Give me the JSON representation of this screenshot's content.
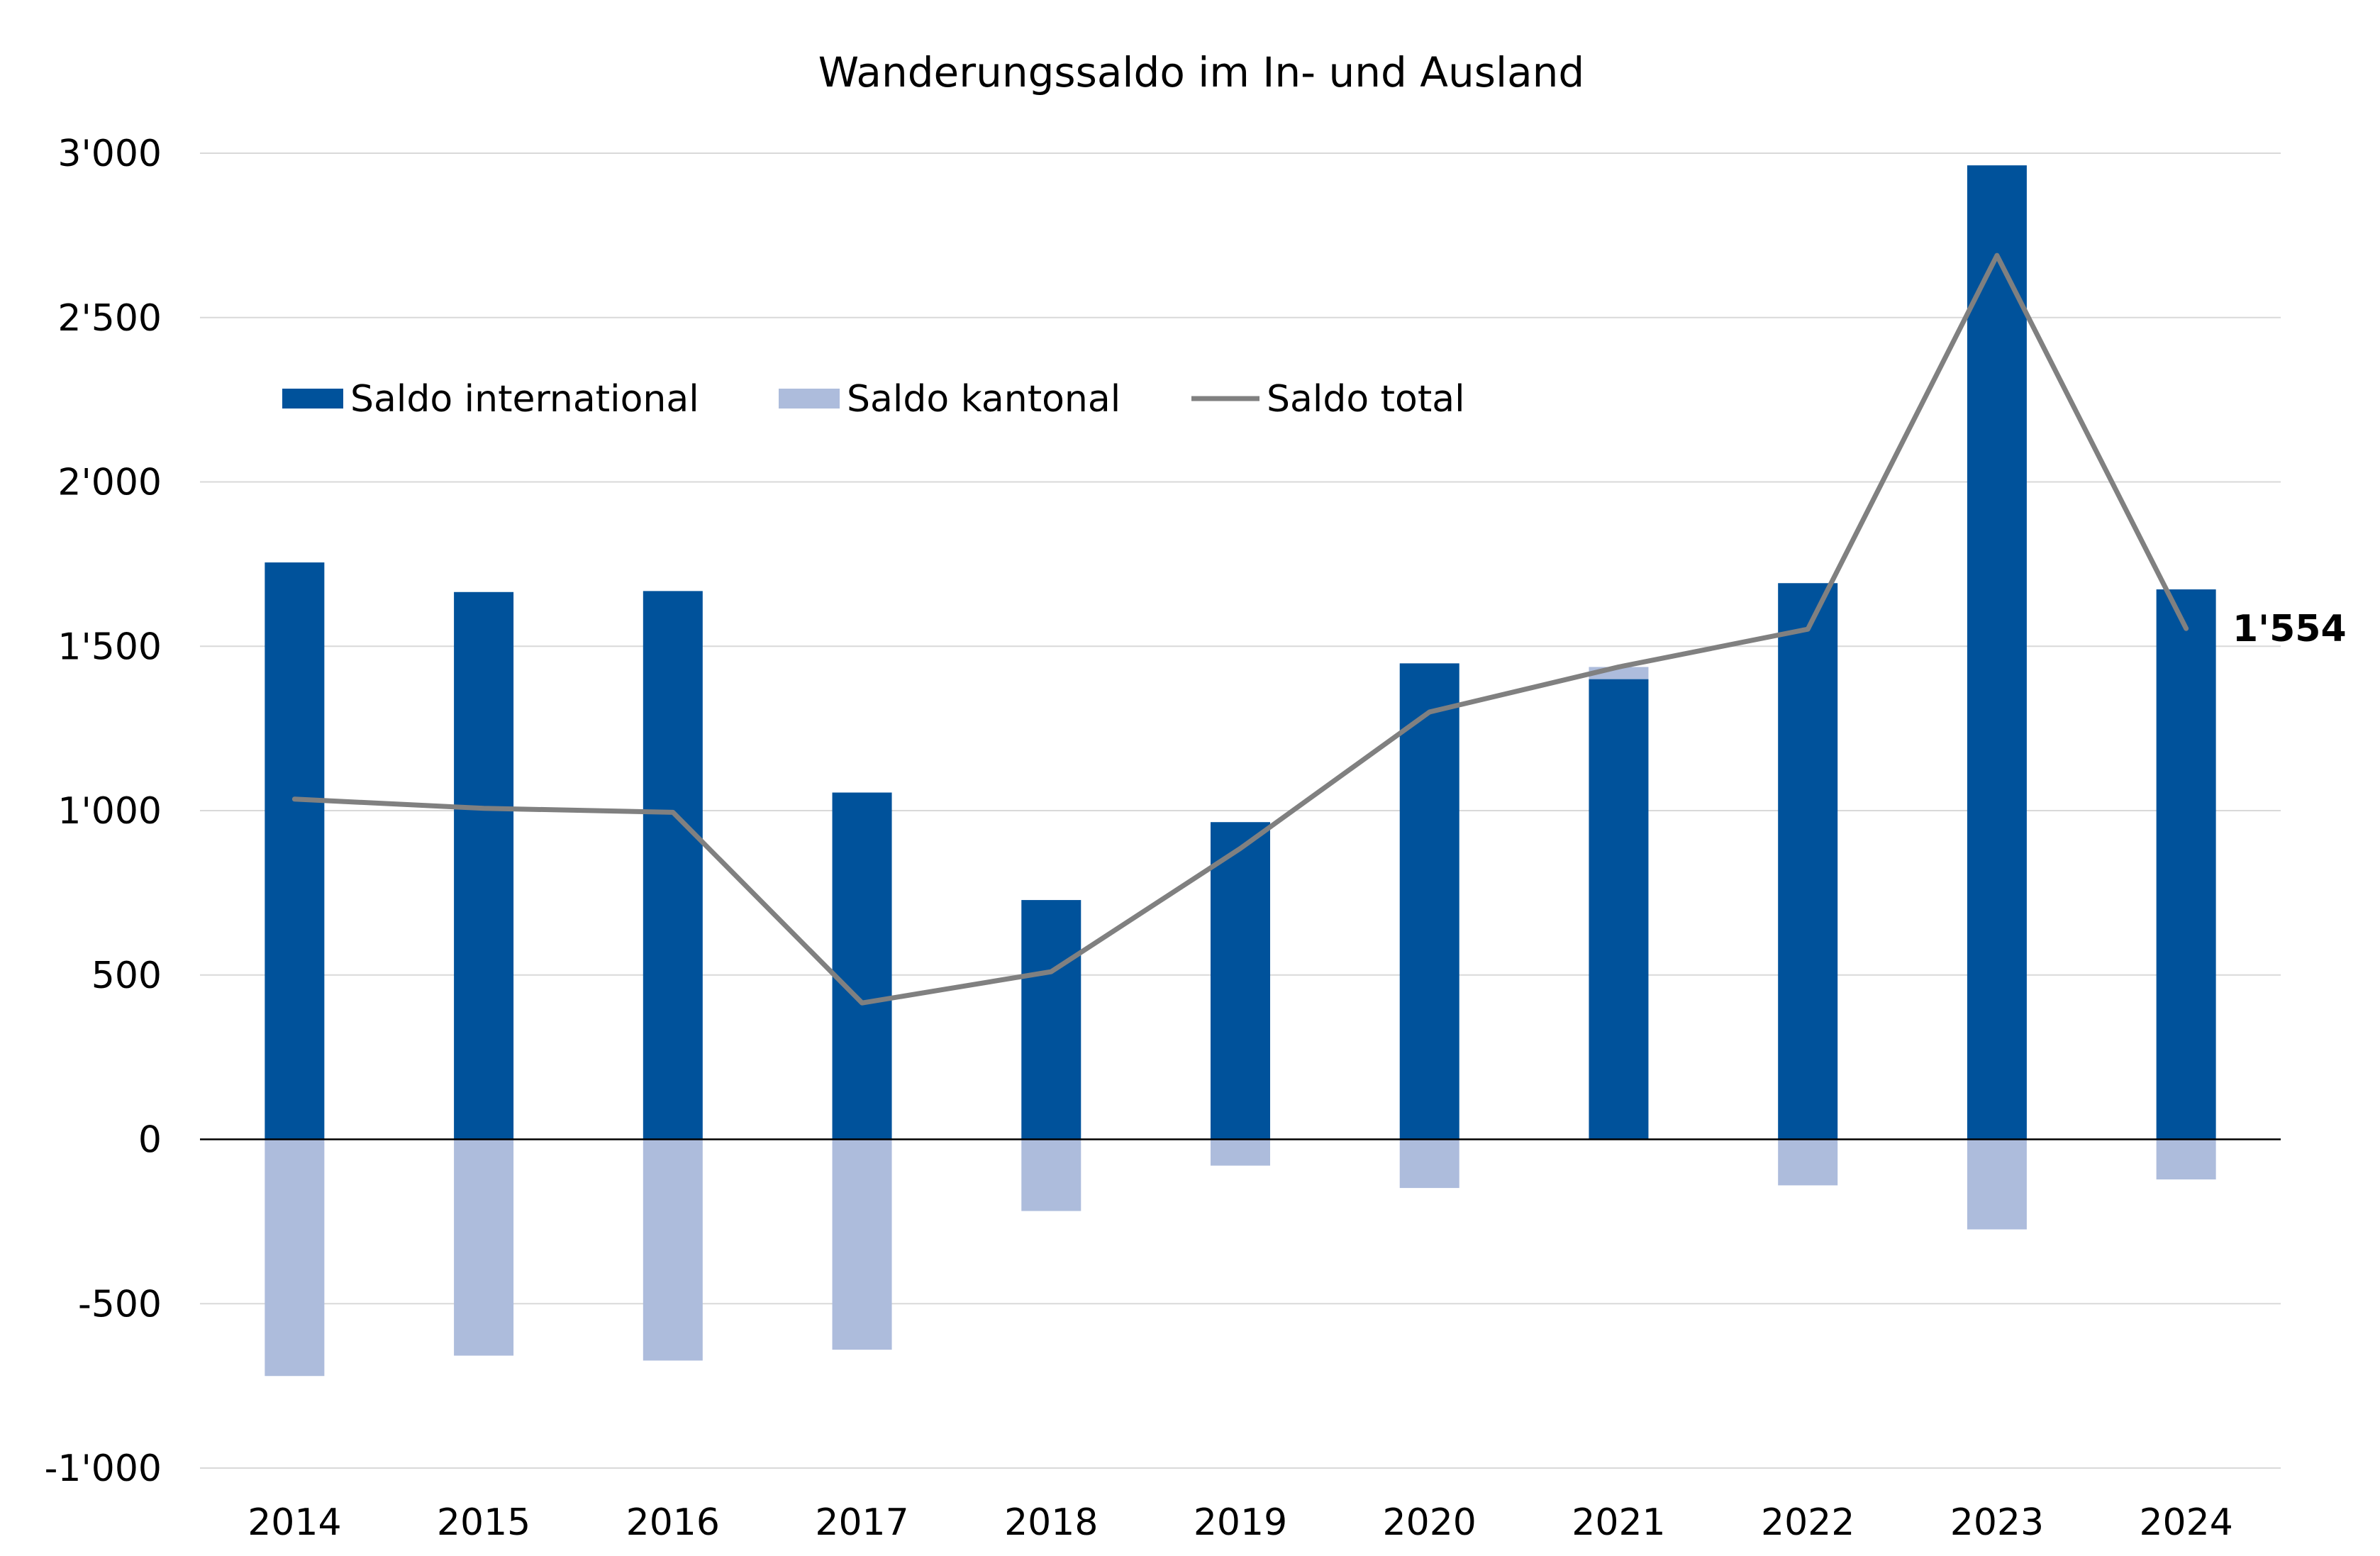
{
  "chart_data": {
    "type": "bar",
    "title": "Wanderungssaldo im In- und Ausland",
    "categories": [
      "2014",
      "2015",
      "2016",
      "2017",
      "2018",
      "2019",
      "2020",
      "2021",
      "2022",
      "2023",
      "2024"
    ],
    "series": [
      {
        "name": "Saldo international",
        "type": "bar",
        "color": "#00529b",
        "values": [
          1755,
          1665,
          1668,
          1055,
          728,
          965,
          1448,
          1400,
          1692,
          2963,
          1673
        ]
      },
      {
        "name": "Saldo kantonal",
        "type": "bar",
        "color": "#adbcdc",
        "values": [
          -720,
          -658,
          -673,
          -640,
          -218,
          -80,
          -148,
          37,
          -140,
          -274,
          -122
        ]
      },
      {
        "name": "Saldo total",
        "type": "line",
        "color": "#808080",
        "values": [
          1035,
          1007,
          995,
          415,
          510,
          885,
          1300,
          1437,
          1552,
          2689,
          1554
        ]
      }
    ],
    "yticks": [
      "3'000",
      "2'500",
      "2'000",
      "1'500",
      "1'000",
      "500",
      "0",
      "-500",
      "-1'000"
    ],
    "ytick_values": [
      3000,
      2500,
      2000,
      1500,
      1000,
      500,
      0,
      -500,
      -1000
    ],
    "ylim": [
      -1000,
      3000
    ],
    "grid": true,
    "legend_position": "top-left",
    "annotation": "1'554"
  }
}
